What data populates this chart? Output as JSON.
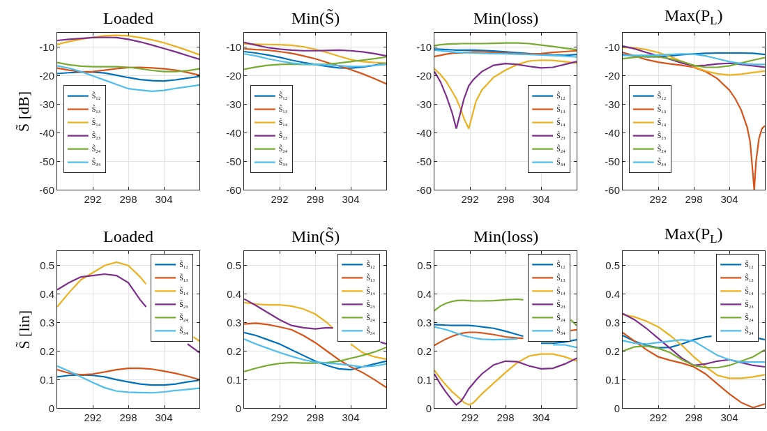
{
  "chart_data": [
    {
      "type": "line",
      "title": "Loaded",
      "ylabel": "S̃ [dB]",
      "xlim": [
        286,
        310
      ],
      "xticks": [
        292,
        298,
        304
      ],
      "ylim": [
        -60,
        -5
      ],
      "yticks": [
        -60,
        -50,
        -40,
        -30,
        -20,
        -10
      ],
      "grid": true,
      "legend": "bottom left",
      "x": [
        286,
        288,
        290,
        292,
        294,
        296,
        298,
        300,
        302,
        304,
        306,
        308,
        310
      ],
      "series": [
        {
          "name": "S̃₁₂",
          "color": "#0072bd",
          "values": [
            -19.2,
            -18.9,
            -18.7,
            -18.7,
            -19,
            -19.8,
            -20.6,
            -21.3,
            -21.7,
            -21.8,
            -21.4,
            -20.8,
            -20.2
          ]
        },
        {
          "name": "S̃₁₃",
          "color": "#d95319",
          "values": [
            -17.3,
            -18,
            -18.6,
            -18.5,
            -18,
            -17.5,
            -17.1,
            -17,
            -17.2,
            -17.5,
            -18,
            -18.8,
            -19.8
          ]
        },
        {
          "name": "S̃₁₄",
          "color": "#edb120",
          "values": [
            -9,
            -8,
            -7.2,
            -6.5,
            -6,
            -5.8,
            -6,
            -6.6,
            -7.4,
            -8.4,
            -9.7,
            -11.1,
            -12.6
          ]
        },
        {
          "name": "S̃₂₃",
          "color": "#7e2f8e",
          "values": [
            -7.6,
            -7.2,
            -6.9,
            -6.6,
            -6.5,
            -6.6,
            -7.2,
            -8.1,
            -9.2,
            -10.4,
            -11.6,
            -12.9,
            -14.2
          ]
        },
        {
          "name": "S̃₂₄",
          "color": "#77ac30",
          "values": [
            -15.3,
            -16.1,
            -16.6,
            -16.8,
            -16.8,
            -16.8,
            -17,
            -17.5,
            -18.1,
            -18.5,
            -18.5,
            -18.2,
            -17.5
          ]
        },
        {
          "name": "S̃₃₄",
          "color": "#4dbeee",
          "values": [
            -16.5,
            -17.3,
            -18.5,
            -20,
            -21.5,
            -23,
            -24.5,
            -25,
            -25.4,
            -25.1,
            -24.4,
            -23.8,
            -23.2
          ]
        }
      ]
    },
    {
      "type": "line",
      "title": "Min(S̃)",
      "xlim": [
        286,
        310
      ],
      "xticks": [
        292,
        298,
        304
      ],
      "ylim": [
        -60,
        -5
      ],
      "yticks": [
        -60,
        -50,
        -40,
        -30,
        -20,
        -10
      ],
      "grid": true,
      "legend": "bottom left",
      "x": [
        286,
        288,
        290,
        292,
        294,
        296,
        298,
        300,
        302,
        304,
        306,
        308,
        310
      ],
      "series": [
        {
          "name": "S̃₁₂",
          "color": "#0072bd",
          "values": [
            -11.5,
            -12,
            -12.7,
            -13.5,
            -14.5,
            -15.3,
            -16,
            -16.7,
            -17.2,
            -17.3,
            -16.9,
            -16.3,
            -15.5
          ]
        },
        {
          "name": "S̃₁₃",
          "color": "#d95319",
          "values": [
            -10.5,
            -10.8,
            -11,
            -11.5,
            -12.1,
            -13,
            -14,
            -15.3,
            -16.5,
            -17.8,
            -19.3,
            -21,
            -22.8
          ]
        },
        {
          "name": "S̃₁₄",
          "color": "#edb120",
          "values": [
            -8.8,
            -8.9,
            -9,
            -9.1,
            -9.3,
            -9.8,
            -10.7,
            -11.8,
            -13.1,
            -14.3,
            -15,
            -15.3,
            -15.5
          ]
        },
        {
          "name": "S̃₂₃",
          "color": "#7e2f8e",
          "values": [
            -8.3,
            -9.2,
            -10.1,
            -10.6,
            -11,
            -11.2,
            -11.2,
            -11.1,
            -11,
            -11.2,
            -11.6,
            -12.2,
            -13
          ]
        },
        {
          "name": "S̃₂₄",
          "color": "#77ac30",
          "values": [
            -17.7,
            -16.9,
            -16.3,
            -16,
            -15.9,
            -16,
            -16,
            -15.9,
            -15.5,
            -15,
            -14.5,
            -14,
            -13.4
          ]
        },
        {
          "name": "S̃₃₄",
          "color": "#4dbeee",
          "values": [
            -12.3,
            -13,
            -14,
            -14.8,
            -15.5,
            -15.9,
            -16,
            -16.2,
            -16.4,
            -16.7,
            -16.7,
            -16.3,
            -16
          ]
        }
      ]
    },
    {
      "type": "line",
      "title": "Min(loss)",
      "xlim": [
        286,
        310
      ],
      "xticks": [
        292,
        298,
        304
      ],
      "ylim": [
        -60,
        -5
      ],
      "yticks": [
        -60,
        -50,
        -40,
        -30,
        -20,
        -10
      ],
      "grid": true,
      "legend": "bottom right",
      "x": [
        286,
        287,
        288,
        289,
        289.7,
        290.5,
        291,
        291.8,
        292.5,
        293,
        294,
        296,
        298,
        300,
        302,
        304,
        306,
        308,
        310
      ],
      "series": [
        {
          "name": "S̃₁₂",
          "color": "#0072bd",
          "values": [
            -10.6,
            -10.7,
            -10.8,
            -10.9,
            -11,
            -11,
            -11,
            -11,
            -11,
            -11,
            -11.1,
            -11.3,
            -11.6,
            -11.9,
            -12.2,
            -12.5,
            -12.7,
            -12.8,
            -12.5
          ]
        },
        {
          "name": "S̃₁₃",
          "color": "#d95319",
          "values": [
            -13.2,
            -12.8,
            -12.4,
            -12.1,
            -12,
            -11.9,
            -11.8,
            -11.7,
            -11.6,
            -11.6,
            -11.6,
            -11.8,
            -12,
            -12.2,
            -12.3,
            -12.2,
            -11.8,
            -11.5,
            -11.2
          ]
        },
        {
          "name": "S̃₁₄",
          "color": "#edb120",
          "values": [
            -17.5,
            -19.5,
            -22,
            -25.5,
            -28,
            -32,
            -35,
            -38.5,
            -33,
            -29,
            -25,
            -20.5,
            -18,
            -16,
            -14.8,
            -14.5,
            -14.6,
            -15,
            -15.5
          ]
        },
        {
          "name": "S̃₂₃",
          "color": "#7e2f8e",
          "values": [
            -18.5,
            -22,
            -27,
            -33,
            -38.5,
            -32,
            -28,
            -23.5,
            -21.5,
            -20.5,
            -18.5,
            -16.3,
            -15.7,
            -16,
            -16.7,
            -17.2,
            -17,
            -16,
            -15
          ]
        },
        {
          "name": "S̃₂₄",
          "color": "#77ac30",
          "values": [
            -9.4,
            -9.1,
            -8.9,
            -8.8,
            -8.8,
            -8.7,
            -8.7,
            -8.7,
            -8.7,
            -8.7,
            -8.7,
            -8.6,
            -8.5,
            -8.5,
            -8.7,
            -9.2,
            -9.7,
            -10.3,
            -10.8
          ]
        },
        {
          "name": "S̃₃₄",
          "color": "#4dbeee",
          "values": [
            -11,
            -11.2,
            -11.4,
            -11.6,
            -11.7,
            -11.8,
            -11.9,
            -11.9,
            -12,
            -12,
            -12.1,
            -12.2,
            -12.3,
            -12.4,
            -12.5,
            -12.7,
            -12.9,
            -13.1,
            -13.4
          ]
        }
      ]
    },
    {
      "type": "line",
      "title": "Max(P$_{L}$)",
      "xlim": [
        286,
        310
      ],
      "xticks": [
        292,
        298,
        304
      ],
      "ylim": [
        -60,
        -5
      ],
      "yticks": [
        -60,
        -50,
        -40,
        -30,
        -20,
        -10
      ],
      "grid": true,
      "legend": "bottom left",
      "x": [
        286,
        288,
        290,
        292,
        294,
        296,
        298,
        300,
        302,
        304,
        306,
        308,
        310
      ],
      "series": [
        {
          "name": "S̃₁₂",
          "color": "#0072bd",
          "values": [
            -12.5,
            -13,
            -13.3,
            -13.3,
            -13,
            -12.6,
            -12.3,
            -12.1,
            -12,
            -12,
            -12,
            -12.1,
            -12.5
          ]
        },
        {
          "name": "S̃₁₃",
          "color": "#d95319",
          "x": [
            286,
            288,
            290,
            292,
            294,
            296,
            298,
            300,
            302,
            304,
            305,
            306,
            307,
            307.5,
            308,
            308.2,
            308.5,
            309,
            309.5,
            310
          ],
          "values": [
            -11.8,
            -13,
            -14.3,
            -15.2,
            -15.8,
            -16.3,
            -17,
            -18.5,
            -21,
            -25,
            -28,
            -32,
            -38,
            -43,
            -55,
            -60,
            -50,
            -42,
            -38.5,
            -37.5
          ]
        },
        {
          "name": "S̃₁₄",
          "color": "#edb120",
          "values": [
            -10,
            -10.2,
            -10.8,
            -11.8,
            -13.2,
            -15,
            -16.8,
            -18.3,
            -19.3,
            -19.7,
            -19.4,
            -18.8,
            -18.3
          ]
        },
        {
          "name": "S̃₂₃",
          "color": "#7e2f8e",
          "values": [
            -9.6,
            -10.5,
            -11.8,
            -13,
            -14.2,
            -15.5,
            -16.5,
            -16.3,
            -15.8,
            -15.6,
            -16,
            -16.5,
            -17
          ]
        },
        {
          "name": "S̃₂₄",
          "color": "#77ac30",
          "values": [
            -14,
            -13.5,
            -13.2,
            -13.3,
            -14,
            -15,
            -16.3,
            -17,
            -17,
            -16.5,
            -15.5,
            -14.5,
            -13.6
          ]
        },
        {
          "name": "S̃₃₄",
          "color": "#4dbeee",
          "values": [
            -12.8,
            -12.8,
            -12.8,
            -12.7,
            -12.5,
            -12.3,
            -12.4,
            -13,
            -14,
            -15,
            -15.7,
            -16,
            -16
          ]
        }
      ]
    },
    {
      "type": "line",
      "title": "Loaded",
      "ylabel": "S̃ [lin]",
      "xlim": [
        286,
        310
      ],
      "xticks": [
        292,
        298,
        304
      ],
      "ylim": [
        0,
        0.55
      ],
      "yticks": [
        0,
        0.1,
        0.2,
        0.3,
        0.4,
        0.5
      ],
      "grid": true,
      "legend": "top right",
      "x": [
        286,
        288,
        290,
        292,
        294,
        296,
        298,
        300,
        302,
        304,
        306,
        308,
        310
      ],
      "series": [
        {
          "name": "S̃₁₂",
          "color": "#0072bd",
          "values": [
            0.11,
            0.115,
            0.117,
            0.115,
            0.11,
            0.1,
            0.092,
            0.085,
            0.081,
            0.081,
            0.085,
            0.092,
            0.098
          ]
        },
        {
          "name": "S̃₁₃",
          "color": "#d95319",
          "values": [
            0.135,
            0.123,
            0.117,
            0.12,
            0.127,
            0.135,
            0.14,
            0.14,
            0.137,
            0.13,
            0.122,
            0.112,
            0.1
          ]
        },
        {
          "name": "S̃₁₄",
          "color": "#edb120",
          "values": [
            0.355,
            0.405,
            0.45,
            0.475,
            0.5,
            0.512,
            0.5,
            0.46,
            0.435,
            null,
            0.25,
            0.235
          ],
          "x": [
            286,
            288,
            290,
            292,
            294,
            296,
            298,
            300,
            301,
            305,
            309,
            310
          ]
        },
        {
          "name": "S̃₂₃",
          "color": "#7e2f8e",
          "values": [
            0.415,
            0.44,
            0.46,
            0.465,
            0.47,
            0.465,
            0.44,
            0.38,
            0.355,
            null,
            0.225,
            0.195
          ],
          "x": [
            286,
            288,
            290,
            292,
            294,
            296,
            298,
            300,
            301,
            305,
            308,
            310
          ]
        },
        {
          "name": "S̃₂₄",
          "color": "#77ac30",
          "values": [
            null,
            null,
            null,
            null,
            null,
            null,
            null,
            null,
            null,
            null,
            null,
            null,
            null
          ]
        },
        {
          "name": "S̃₃₄",
          "color": "#4dbeee",
          "values": [
            0.148,
            0.13,
            0.11,
            0.09,
            0.072,
            0.06,
            0.056,
            0.055,
            0.054,
            0.057,
            0.062,
            0.066,
            0.07
          ]
        }
      ]
    },
    {
      "type": "line",
      "title": "Min(S̃)",
      "xlim": [
        286,
        310
      ],
      "xticks": [
        292,
        298,
        304
      ],
      "ylim": [
        0,
        0.55
      ],
      "yticks": [
        0,
        0.1,
        0.2,
        0.3,
        0.4,
        0.5
      ],
      "grid": true,
      "legend": "top right",
      "x": [
        286,
        288,
        290,
        292,
        294,
        296,
        298,
        300,
        302,
        304,
        306,
        308,
        310
      ],
      "series": [
        {
          "name": "S̃₁₂",
          "color": "#0072bd",
          "values": [
            0.265,
            0.255,
            0.24,
            0.225,
            0.205,
            0.185,
            0.165,
            0.15,
            0.138,
            0.135,
            0.145,
            0.155,
            0.165
          ]
        },
        {
          "name": "S̃₁₃",
          "color": "#d95319",
          "values": [
            0.295,
            0.298,
            0.293,
            0.285,
            0.275,
            0.255,
            0.23,
            0.2,
            0.17,
            0.145,
            0.125,
            0.1,
            0.073
          ]
        },
        {
          "name": "S̃₁₄",
          "color": "#edb120",
          "values": [
            0.37,
            0.365,
            0.362,
            0.362,
            0.358,
            0.348,
            0.33,
            0.3,
            0.28,
            null,
            0.225,
            0.195,
            0.18,
            0.172
          ],
          "x": [
            286,
            288,
            290,
            292,
            294,
            296,
            298,
            300,
            301,
            302,
            304,
            306,
            308,
            310
          ]
        },
        {
          "name": "S̃₂₃",
          "color": "#7e2f8e",
          "values": [
            0.383,
            0.36,
            0.335,
            0.31,
            0.29,
            0.282,
            0.278,
            0.282,
            0.281,
            null,
            0.232,
            0.225
          ],
          "x": [
            286,
            288,
            290,
            292,
            294,
            296,
            298,
            300,
            301,
            305,
            309,
            310
          ]
        },
        {
          "name": "S̃₂₄",
          "color": "#77ac30",
          "values": [
            0.128,
            0.14,
            0.15,
            0.157,
            0.16,
            0.158,
            0.158,
            0.16,
            0.165,
            0.175,
            0.185,
            0.197,
            0.213
          ]
        },
        {
          "name": "S̃₃₄",
          "color": "#4dbeee",
          "values": [
            0.242,
            0.225,
            0.21,
            0.195,
            0.182,
            0.17,
            0.162,
            0.158,
            0.155,
            0.15,
            0.145,
            0.148,
            0.155
          ]
        }
      ]
    },
    {
      "type": "line",
      "title": "Min(loss)",
      "xlim": [
        286,
        310
      ],
      "xticks": [
        292,
        298,
        304
      ],
      "ylim": [
        0,
        0.55
      ],
      "yticks": [
        0,
        0.1,
        0.2,
        0.3,
        0.4,
        0.5
      ],
      "grid": true,
      "legend": "top right",
      "x": [
        286,
        287,
        288,
        289,
        289.7,
        290.5,
        291,
        291.8,
        292.5,
        293,
        294,
        296,
        298,
        300,
        302,
        304,
        306,
        308,
        310
      ],
      "series": [
        {
          "name": "S̃₁₂",
          "color": "#0072bd",
          "values": [
            0.293,
            0.292,
            0.291,
            0.29,
            0.29,
            0.29,
            0.29,
            0.29,
            0.289,
            0.288,
            0.285,
            0.28,
            0.27,
            0.258,
            0.252,
            null,
            0.228,
            0.228,
            0.232,
            0.24
          ],
          "x": [
            286,
            287,
            288,
            289,
            289.7,
            290.5,
            291,
            291.8,
            292.5,
            293,
            294,
            296,
            298,
            300,
            301,
            302,
            304,
            306,
            308,
            310
          ]
        },
        {
          "name": "S̃₁₃",
          "color": "#d95319",
          "values": [
            0.22,
            0.232,
            0.243,
            0.252,
            0.257,
            0.262,
            0.264,
            0.266,
            0.266,
            0.266,
            0.264,
            0.258,
            0.25,
            0.246,
            0.245,
            null,
            0.272,
            0.275
          ],
          "x": [
            286,
            287,
            288,
            289,
            289.7,
            290.5,
            291,
            291.8,
            292.5,
            293,
            294,
            296,
            298,
            300,
            301,
            305,
            309,
            310
          ]
        },
        {
          "name": "S̃₁₄",
          "color": "#edb120",
          "values": [
            0.133,
            0.105,
            0.08,
            0.058,
            0.045,
            0.03,
            0.02,
            0.012,
            0.018,
            0.028,
            0.05,
            0.088,
            0.125,
            0.16,
            0.183,
            0.19,
            0.19,
            0.18,
            0.165
          ]
        },
        {
          "name": "S̃₂₃",
          "color": "#7e2f8e",
          "values": [
            0.12,
            0.085,
            0.055,
            0.028,
            0.012,
            0.025,
            0.04,
            0.068,
            0.085,
            0.098,
            0.12,
            0.152,
            0.165,
            0.163,
            0.148,
            0.138,
            0.14,
            0.155,
            0.175
          ]
        },
        {
          "name": "S̃₂₄",
          "color": "#77ac30",
          "values": [
            0.342,
            0.358,
            0.368,
            0.374,
            0.377,
            0.378,
            0.378,
            0.377,
            0.376,
            0.376,
            0.376,
            0.377,
            0.38,
            0.382,
            0.38,
            null,
            0.31,
            0.29
          ],
          "x": [
            286,
            287,
            288,
            289,
            289.7,
            290.5,
            291,
            291.8,
            292.5,
            293,
            294,
            296,
            298,
            300,
            301,
            305,
            309,
            310
          ]
        },
        {
          "name": "S̃₃₄",
          "color": "#4dbeee",
          "values": [
            0.285,
            0.28,
            0.275,
            0.268,
            0.263,
            0.258,
            0.254,
            0.25,
            0.247,
            0.245,
            0.242,
            0.24,
            0.241,
            0.243,
            null,
            null,
            0.222,
            0.222,
            0.213
          ]
        }
      ]
    },
    {
      "type": "line",
      "title": "Max(P$_{L}$)",
      "xlim": [
        286,
        310
      ],
      "xticks": [
        292,
        298,
        304
      ],
      "ylim": [
        0,
        0.55
      ],
      "yticks": [
        0,
        0.1,
        0.2,
        0.3,
        0.4,
        0.5
      ],
      "grid": true,
      "legend": "top right",
      "x": [
        286,
        288,
        290,
        292,
        294,
        296,
        298,
        300,
        302,
        304,
        306,
        308,
        310
      ],
      "series": [
        {
          "name": "S̃₁₂",
          "color": "#0072bd",
          "values": [
            0.255,
            0.235,
            0.22,
            0.212,
            0.213,
            0.225,
            0.24,
            0.25,
            0.252,
            null,
            0.245,
            0.24
          ],
          "x": [
            286,
            288,
            290,
            292,
            294,
            296,
            298,
            300,
            301,
            305,
            309,
            310
          ]
        },
        {
          "name": "S̃₁₃",
          "color": "#d95319",
          "values": [
            0.265,
            0.235,
            0.205,
            0.18,
            0.168,
            0.158,
            0.145,
            0.12,
            0.085,
            0.05,
            0.02,
            0.002,
            0.015
          ]
        },
        {
          "name": "S̃₁₄",
          "color": "#edb120",
          "values": [
            0.328,
            0.32,
            0.305,
            0.285,
            0.255,
            0.22,
            0.18,
            0.145,
            0.115,
            0.105,
            0.105,
            0.11,
            0.117
          ]
        },
        {
          "name": "S̃₂₃",
          "color": "#7e2f8e",
          "values": [
            0.332,
            0.31,
            0.28,
            0.245,
            0.21,
            0.175,
            0.15,
            0.155,
            0.165,
            0.17,
            0.16,
            0.15,
            0.145
          ]
        },
        {
          "name": "S̃₂₄",
          "color": "#77ac30",
          "values": [
            0.2,
            0.215,
            0.218,
            0.21,
            0.195,
            0.17,
            0.15,
            0.142,
            0.142,
            0.15,
            0.165,
            0.18,
            0.205
          ]
        },
        {
          "name": "S̃₃₄",
          "color": "#4dbeee",
          "values": [
            0.237,
            0.228,
            0.225,
            0.23,
            0.235,
            0.24,
            0.235,
            0.21,
            0.185,
            0.17,
            0.162,
            0.162,
            0.162
          ]
        }
      ]
    }
  ]
}
